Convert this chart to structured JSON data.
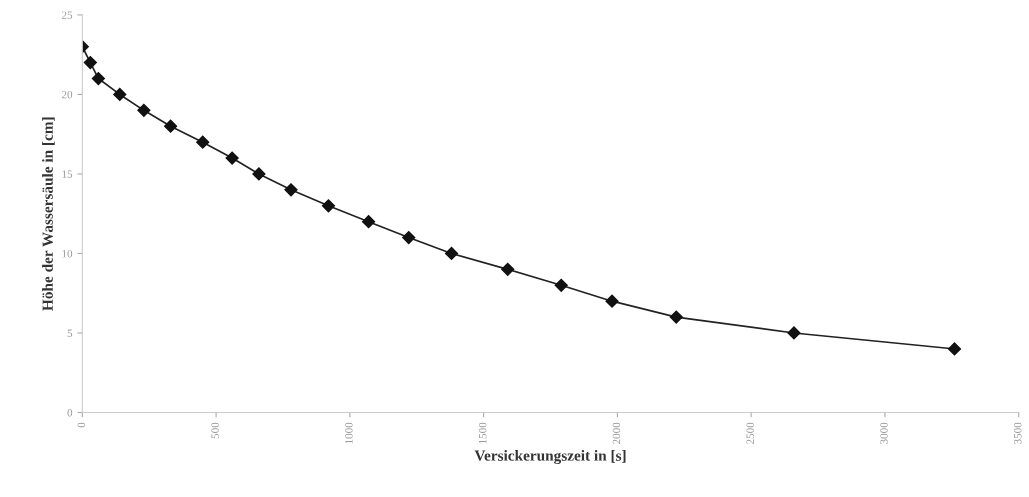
{
  "chart_data": {
    "type": "line",
    "xlabel": "Versickerungszeit in [s]",
    "ylabel": "Höhe der Wassersäule in [cm]",
    "x": [
      0,
      30,
      60,
      140,
      230,
      330,
      450,
      560,
      660,
      780,
      920,
      1070,
      1220,
      1380,
      1590,
      1790,
      1980,
      2220,
      2660,
      3260
    ],
    "series": [
      {
        "color": "#222222",
        "values": [
          23,
          22,
          21,
          20,
          19,
          18,
          17,
          16,
          15,
          14,
          13,
          12,
          11,
          10,
          9,
          8,
          7,
          6,
          5,
          4
        ]
      }
    ],
    "xlim": [
      0,
      3500
    ],
    "xticks": [
      0,
      500,
      1000,
      1500,
      2000,
      2500,
      3000,
      3500
    ],
    "ylim": [
      0,
      25
    ],
    "yticks": [
      0,
      5,
      10,
      15,
      20,
      25
    ],
    "marker": "diamond",
    "line_style": "solid",
    "grid": false,
    "legend": false
  }
}
